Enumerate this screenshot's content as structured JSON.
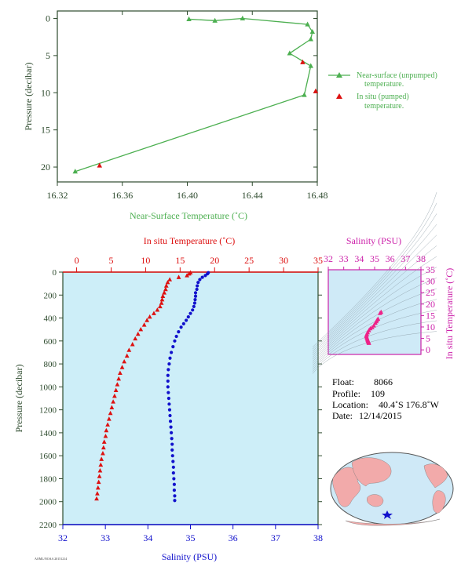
{
  "colors": {
    "green": "#4caf50",
    "red": "#dd1111",
    "blue": "#1111cc",
    "magenta": "#cc22aa",
    "pink": "#ee2288",
    "axis_dark": "#2d4a2d",
    "panel_bg": "#cdeef8",
    "ts_bg": "#cfeaf7",
    "land": "#f2aaaa",
    "ocean": "#cfe9f7"
  },
  "top_chart": {
    "ylabel": "Pressure (decibar)",
    "xlabel": "Near-Surface Temperature (˚C)",
    "legend": [
      {
        "label1": "Near-surface (unpumped)",
        "label2": "temperature."
      },
      {
        "label1": "In situ (pumped)",
        "label2": "temperature."
      }
    ]
  },
  "bottom_chart": {
    "ylabel": "Pressure (decibar)",
    "xlabel_bottom": "Salinity (PSU)",
    "xlabel_top": "In situ Temperature (˚C)"
  },
  "ts_chart": {
    "title": "Salinity (PSU)",
    "ylabel": "In situ Temperature (˚C)"
  },
  "info": {
    "float_label": "Float:",
    "float_value": "8066",
    "profile_label": "Profile:",
    "profile_value": "109",
    "location_label": "Location:",
    "location_value": "40.4˚S  176.8˚W",
    "date_label": "Date:",
    "date_value": "12/14/2015"
  },
  "footer_code": "AOML/NOAA 20151214",
  "chart_data": [
    {
      "type": "line",
      "x_label": "Near-Surface Temperature (˚C)",
      "y_label": "Pressure (decibar)",
      "xlim": [
        16.32,
        16.48
      ],
      "ylim": [
        22,
        -1
      ],
      "x_ticks": [
        16.32,
        16.36,
        16.4,
        16.44,
        16.48
      ],
      "y_ticks": [
        0,
        5,
        10,
        15,
        20
      ],
      "series": [
        {
          "name": "Near-surface (unpumped) temperature.",
          "marker": "triangle",
          "points": [
            [
              16.401,
              0.1
            ],
            [
              16.417,
              0.3
            ],
            [
              16.434,
              0.0
            ],
            [
              16.474,
              0.8
            ],
            [
              16.477,
              1.8
            ],
            [
              16.476,
              2.8
            ],
            [
              16.463,
              4.7
            ],
            [
              16.476,
              6.4
            ],
            [
              16.472,
              10.3
            ],
            [
              16.331,
              20.6
            ]
          ]
        },
        {
          "name": "In situ (pumped) temperature.",
          "marker": "triangle",
          "points": [
            [
              16.471,
              5.9
            ],
            [
              16.479,
              9.8
            ],
            [
              16.346,
              19.8
            ]
          ]
        }
      ]
    },
    {
      "type": "scatter",
      "y_label": "Pressure (decibar)",
      "ylim": [
        2200,
        0
      ],
      "y_ticks": [
        0,
        200,
        400,
        600,
        800,
        1000,
        1200,
        1400,
        1600,
        1800,
        2000,
        2200
      ],
      "top_axis": {
        "label": "In situ Temperature (˚C)",
        "range": [
          -2,
          35
        ],
        "ticks": [
          0,
          5,
          10,
          15,
          20,
          25,
          30,
          35
        ]
      },
      "bottom_axis": {
        "label": "Salinity (PSU)",
        "range": [
          32,
          38
        ],
        "ticks": [
          32,
          33,
          34,
          35,
          36,
          37,
          38
        ]
      },
      "series": [
        {
          "name": "In situ Temperature (˚C)",
          "marker": "triangle",
          "points": [
            [
              16.5,
              5
            ],
            [
              16.3,
              15
            ],
            [
              16.0,
              30
            ],
            [
              14.8,
              45
            ],
            [
              13.5,
              65
            ],
            [
              13.2,
              90
            ],
            [
              13.0,
              120
            ],
            [
              12.9,
              150
            ],
            [
              12.7,
              180
            ],
            [
              12.5,
              210
            ],
            [
              12.4,
              240
            ],
            [
              12.3,
              270
            ],
            [
              12.1,
              300
            ],
            [
              11.7,
              330
            ],
            [
              11.2,
              360
            ],
            [
              10.6,
              390
            ],
            [
              10.2,
              420
            ],
            [
              9.8,
              460
            ],
            [
              9.3,
              500
            ],
            [
              8.9,
              540
            ],
            [
              8.5,
              580
            ],
            [
              8.1,
              630
            ],
            [
              7.6,
              680
            ],
            [
              7.3,
              730
            ],
            [
              6.9,
              780
            ],
            [
              6.6,
              830
            ],
            [
              6.3,
              880
            ],
            [
              6.1,
              930
            ],
            [
              5.9,
              980
            ],
            [
              5.7,
              1030
            ],
            [
              5.5,
              1080
            ],
            [
              5.3,
              1130
            ],
            [
              5.1,
              1180
            ],
            [
              4.9,
              1230
            ],
            [
              4.7,
              1280
            ],
            [
              4.5,
              1330
            ],
            [
              4.3,
              1380
            ],
            [
              4.2,
              1430
            ],
            [
              4.0,
              1480
            ],
            [
              3.9,
              1530
            ],
            [
              3.8,
              1580
            ],
            [
              3.6,
              1630
            ],
            [
              3.5,
              1680
            ],
            [
              3.4,
              1730
            ],
            [
              3.3,
              1780
            ],
            [
              3.2,
              1830
            ],
            [
              3.1,
              1880
            ],
            [
              3.0,
              1930
            ],
            [
              2.9,
              1975
            ]
          ]
        },
        {
          "name": "Salinity (PSU)",
          "marker": "circle",
          "points": [
            [
              35.42,
              5
            ],
            [
              35.4,
              15
            ],
            [
              35.35,
              30
            ],
            [
              35.28,
              45
            ],
            [
              35.22,
              65
            ],
            [
              35.18,
              90
            ],
            [
              35.16,
              120
            ],
            [
              35.15,
              150
            ],
            [
              35.12,
              180
            ],
            [
              35.12,
              210
            ],
            [
              35.11,
              240
            ],
            [
              35.1,
              270
            ],
            [
              35.08,
              300
            ],
            [
              35.05,
              330
            ],
            [
              35.0,
              360
            ],
            [
              34.95,
              390
            ],
            [
              34.9,
              420
            ],
            [
              34.84,
              450
            ],
            [
              34.78,
              480
            ],
            [
              34.72,
              520
            ],
            [
              34.67,
              560
            ],
            [
              34.63,
              600
            ],
            [
              34.59,
              650
            ],
            [
              34.55,
              700
            ],
            [
              34.52,
              750
            ],
            [
              34.5,
              800
            ],
            [
              34.48,
              850
            ],
            [
              34.47,
              900
            ],
            [
              34.47,
              950
            ],
            [
              34.47,
              1000
            ],
            [
              34.48,
              1050
            ],
            [
              34.49,
              1100
            ],
            [
              34.5,
              1150
            ],
            [
              34.51,
              1200
            ],
            [
              34.52,
              1250
            ],
            [
              34.53,
              1300
            ],
            [
              34.54,
              1350
            ],
            [
              34.55,
              1400
            ],
            [
              34.56,
              1450
            ],
            [
              34.57,
              1500
            ],
            [
              34.57,
              1550
            ],
            [
              34.58,
              1600
            ],
            [
              34.59,
              1650
            ],
            [
              34.6,
              1700
            ],
            [
              34.6,
              1750
            ],
            [
              34.61,
              1800
            ],
            [
              34.62,
              1850
            ],
            [
              34.62,
              1900
            ],
            [
              34.63,
              1950
            ],
            [
              34.63,
              1990
            ]
          ]
        }
      ]
    },
    {
      "type": "scatter",
      "title": "Salinity (PSU)",
      "y_label": "In situ Temperature (˚C)",
      "xlim": [
        32,
        38
      ],
      "ylim": [
        -2,
        35
      ],
      "x_ticks": [
        32,
        33,
        34,
        35,
        36,
        37,
        38
      ],
      "y_ticks": [
        0,
        5,
        10,
        15,
        20,
        25,
        30,
        35
      ],
      "series": [
        {
          "name": "T-S",
          "marker": "triangle",
          "points": [
            [
              35.42,
              16.5
            ],
            [
              35.35,
              16.0
            ],
            [
              35.22,
              13.5
            ],
            [
              35.16,
              13.0
            ],
            [
              35.11,
              12.4
            ],
            [
              35.05,
              11.7
            ],
            [
              34.95,
              10.6
            ],
            [
              34.84,
              9.8
            ],
            [
              34.72,
              9.3
            ],
            [
              34.63,
              8.5
            ],
            [
              34.55,
              7.6
            ],
            [
              34.5,
              6.9
            ],
            [
              34.47,
              6.3
            ],
            [
              34.47,
              5.9
            ],
            [
              34.49,
              5.5
            ],
            [
              34.51,
              5.1
            ],
            [
              34.53,
              4.7
            ],
            [
              34.55,
              4.3
            ],
            [
              34.57,
              4.0
            ],
            [
              34.58,
              3.8
            ],
            [
              34.6,
              3.5
            ],
            [
              34.61,
              3.3
            ],
            [
              34.62,
              3.1
            ],
            [
              34.63,
              2.9
            ]
          ]
        }
      ]
    }
  ]
}
